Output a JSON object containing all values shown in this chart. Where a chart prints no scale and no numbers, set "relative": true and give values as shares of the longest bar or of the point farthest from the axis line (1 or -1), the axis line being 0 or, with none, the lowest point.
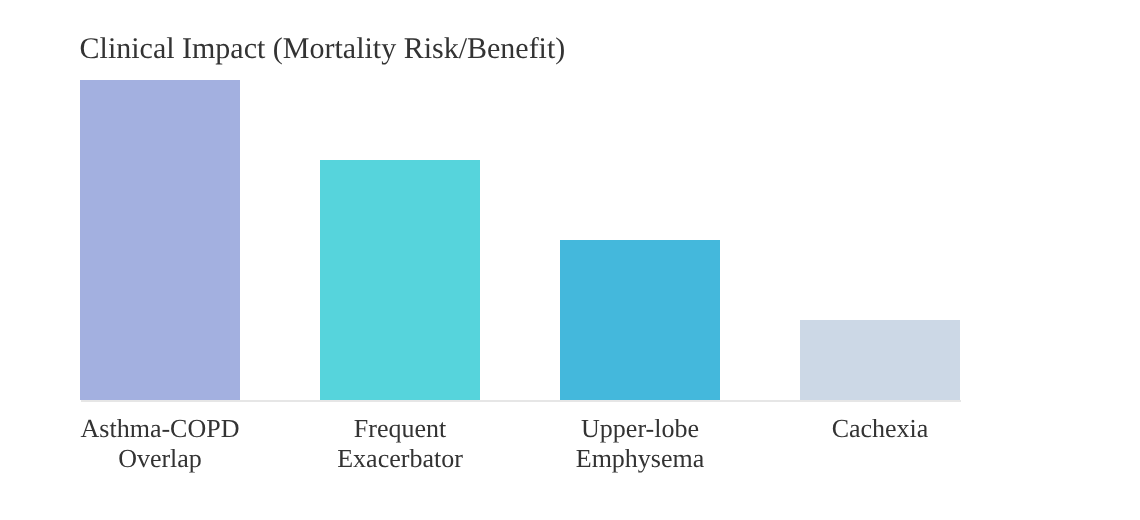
{
  "chart_data": {
    "type": "bar",
    "title": "Clinical Impact (Mortality Risk/Benefit)",
    "relative": true,
    "categories": [
      "Asthma-COPD Overlap",
      "Frequent Exacerbator",
      "Upper-lobe Emphysema",
      "Cachexia"
    ],
    "values": [
      1,
      0.75,
      0.5,
      0.25
    ],
    "colors": [
      "#a3b0e0",
      "#56d4dc",
      "#44b8dc",
      "#ccd8e6"
    ],
    "grid": false
  }
}
